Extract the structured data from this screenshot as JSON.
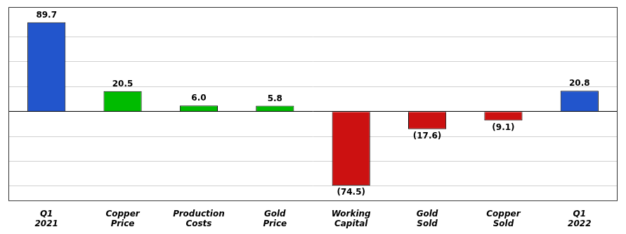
{
  "chart_data": {
    "type": "bar",
    "categories": [
      "Q1\n2021",
      "Copper\nPrice",
      "Production\nCosts",
      "Gold\nPrice",
      "Working\nCapital",
      "Gold\nSold",
      "Copper\nSold",
      "Q1\n2022"
    ],
    "values": [
      89.7,
      20.5,
      6.0,
      5.8,
      -74.5,
      -17.6,
      -9.1,
      20.8
    ],
    "value_labels": [
      "89.7",
      "20.5",
      "6.0",
      "5.8",
      "(74.5)",
      "(17.6)",
      "(9.1)",
      "20.8"
    ],
    "colors": [
      "#2255cc",
      "#00bb00",
      "#00bb00",
      "#00bb00",
      "#cc1111",
      "#cc1111",
      "#cc1111",
      "#2255cc"
    ],
    "data_labels": true,
    "ylim": [
      -90,
      105
    ],
    "yticks": [
      -75,
      -50,
      -25,
      0,
      25,
      50,
      75
    ],
    "grid": true,
    "tick_labels": "x"
  }
}
